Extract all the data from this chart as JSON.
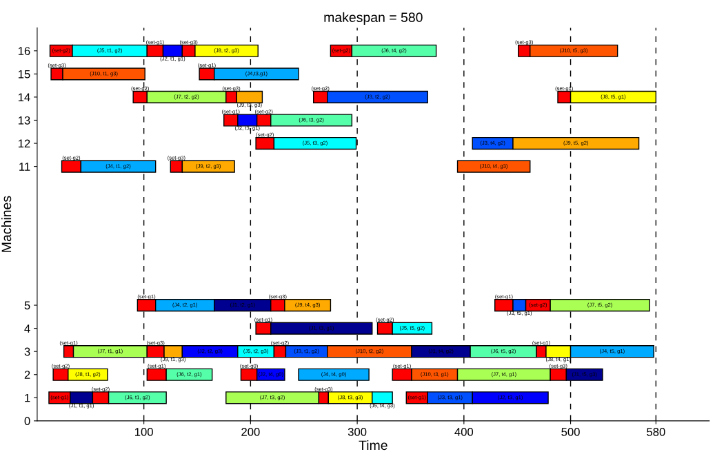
{
  "chart_data": {
    "type": "bar",
    "orientation": "horizontal",
    "title": "makespan = 580",
    "xlabel": "Time",
    "ylabel": "Machines",
    "categories": [
      "16",
      "15",
      "14",
      "13",
      "12",
      "11",
      null,
      null,
      null,
      null,
      null,
      "5",
      "4",
      "3",
      "2",
      "1",
      "0"
    ],
    "xlim": [
      0,
      630
    ],
    "xticks": [
      100,
      200,
      300,
      400,
      500,
      580
    ],
    "ref_lines": [
      {
        "axis": "x",
        "value": 100,
        "color": "#000000",
        "line_style": "dashed"
      },
      {
        "axis": "x",
        "value": 200,
        "color": "#000000",
        "line_style": "dashed"
      },
      {
        "axis": "x",
        "value": 300,
        "color": "#000000",
        "line_style": "dashed"
      },
      {
        "axis": "x",
        "value": 400,
        "color": "#000000",
        "line_style": "dashed"
      },
      {
        "axis": "x",
        "value": 500,
        "color": "#000000",
        "line_style": "dashed"
      },
      {
        "axis": "x",
        "value": 580,
        "color": "#000000",
        "line_style": "dashed"
      }
    ],
    "series": [
      {
        "base": [
          12,
          13,
          90,
          175,
          205,
          23,
          null,
          null,
          null,
          null,
          null,
          94,
          205,
          25,
          15,
          11,
          null
        ],
        "values": [
          21,
          11,
          13,
          13,
          17,
          18,
          null,
          null,
          null,
          null,
          null,
          17,
          14,
          9,
          14,
          20,
          null
        ],
        "colors": [
          "#ff0000",
          "#ff0000",
          "#ff0000",
          "#ff0000",
          "#ff0000",
          "#ff0000",
          null,
          null,
          null,
          null,
          null,
          "#ff0000",
          "#ff0000",
          "#ff0000",
          "#ff0000",
          "#ff0000",
          null
        ],
        "value_labels": [
          "(set-g2)",
          "(set-g3)",
          "(set-g2)",
          "(set-g1)",
          "(set-g2)",
          "(set-g2)",
          null,
          null,
          null,
          null,
          null,
          "(set-g1)",
          "(set-g1)",
          "(set-g1)",
          "(set-g2)",
          "(set-g1)",
          null
        ]
      },
      {
        "base": [
          33,
          24,
          103,
          188,
          222,
          41,
          null,
          null,
          null,
          null,
          null,
          111,
          219,
          34,
          29,
          31,
          null
        ],
        "values": [
          70,
          77,
          74,
          18,
          77,
          70,
          null,
          null,
          null,
          null,
          null,
          55,
          95,
          69,
          37,
          21,
          null
        ],
        "colors": [
          "#00ffff",
          "#ff5500",
          "#aaff55",
          "#0000ff",
          "#00ffff",
          "#00aaff",
          null,
          null,
          null,
          null,
          null,
          "#00aaff",
          "#000090",
          "#aaff55",
          "#ffff00",
          "#000090",
          null
        ],
        "value_labels": [
          "(J5, t1, g2)",
          "(J10, t1, g3)",
          "(J7, t2, g2)",
          "(J2, t3, g1)",
          "(J5, t3, g2)",
          "(J4, t1, g2)",
          null,
          null,
          null,
          null,
          null,
          "(J4, t2, g1)",
          "(J1, t3, g1)",
          "(J7, t1, g1)",
          "(J8, t1, g2)",
          "(J1, t1, g1)",
          null
        ]
      },
      {
        "base": [
          103,
          152,
          177,
          206,
          408,
          125,
          null,
          null,
          null,
          null,
          null,
          166,
          319,
          103,
          103,
          52,
          null
        ],
        "values": [
          15,
          14,
          10,
          13,
          38,
          11,
          null,
          null,
          null,
          null,
          null,
          53,
          14,
          16,
          18,
          15,
          null
        ],
        "colors": [
          "#ff0000",
          "#ff0000",
          "#ff0000",
          "#ff0000",
          "#0050ff",
          "#ff0000",
          null,
          null,
          null,
          null,
          null,
          "#000090",
          "#ff0000",
          "#ff0000",
          "#ff0000",
          "#ff0000",
          null
        ],
        "value_labels": [
          "(set-g1)",
          "(set-g1)",
          "(set-g3)",
          "(set-g2)",
          "(J3, t4, g2)",
          "(set-g3)",
          null,
          null,
          null,
          null,
          null,
          "(J1, t2, g1)",
          "(set-g2)",
          "(set-g3)",
          "(set-g1)",
          "(set-g2)",
          null
        ]
      },
      {
        "base": [
          118,
          166,
          187,
          219,
          446,
          136,
          null,
          null,
          null,
          null,
          null,
          219,
          333,
          119,
          121,
          67,
          null
        ],
        "values": [
          18,
          79,
          24,
          76,
          118,
          49,
          null,
          null,
          null,
          null,
          null,
          13,
          37,
          17,
          43,
          54,
          null
        ],
        "colors": [
          "#0000ff",
          "#00aaff",
          "#ffaa00",
          "#55ffaa",
          "#ffaa00",
          "#ffaa00",
          null,
          null,
          null,
          null,
          null,
          "#ff0000",
          "#00ffff",
          "#ffaa00",
          "#55ffaa",
          "#55ffaa",
          null
        ],
        "value_labels": [
          "(J2, t1, g1)",
          "(J4,t3,g1)",
          "(J9, t3, g3)",
          "(J6, t3, g2)",
          "(J9, t5, g2)",
          "(J9, t2, g3)",
          null,
          null,
          null,
          null,
          null,
          "(set-g3)",
          "(J5, t5, g2)",
          "(J9, t1, g3)",
          "(J6, t2, g1)",
          "(J6, t1, g2)",
          null
        ]
      },
      {
        "base": [
          136,
          null,
          259,
          null,
          null,
          394,
          null,
          null,
          null,
          null,
          null,
          232,
          null,
          136,
          191,
          177,
          null
        ],
        "values": [
          12,
          null,
          13,
          null,
          null,
          68,
          null,
          null,
          null,
          null,
          null,
          43,
          null,
          52,
          15,
          87,
          null
        ],
        "colors": [
          "#ff0000",
          null,
          "#ff0000",
          null,
          null,
          "#ff5500",
          null,
          null,
          null,
          null,
          null,
          "#ffaa00",
          null,
          "#0000ff",
          "#ff0000",
          "#aaff55",
          null
        ],
        "value_labels": [
          "(set-g3)",
          null,
          "(set-g2)",
          null,
          null,
          "(J10, t4, g3)",
          null,
          null,
          null,
          null,
          null,
          "(J9, t4, g3)",
          null,
          "(J2, t2, g3)",
          "(set-g0)",
          "(J7, t3, g2)",
          null
        ]
      },
      {
        "base": [
          148,
          null,
          272,
          null,
          null,
          null,
          null,
          null,
          null,
          null,
          null,
          429,
          null,
          188,
          206,
          264,
          null
        ],
        "values": [
          59,
          null,
          94,
          null,
          null,
          null,
          null,
          null,
          null,
          null,
          null,
          17,
          null,
          34,
          26,
          9,
          null
        ],
        "colors": [
          "#ffff00",
          null,
          "#0050ff",
          null,
          null,
          null,
          null,
          null,
          null,
          null,
          null,
          "#ff0000",
          null,
          "#00ffff",
          "#0000ff",
          "#ff0000",
          null
        ],
        "value_labels": [
          "(J8, t2, g3)",
          null,
          "(J3, t2, g2)",
          null,
          null,
          null,
          null,
          null,
          null,
          null,
          null,
          "(set-g1)",
          null,
          "(J5, t2, g3)",
          "(J2, t4, g0)",
          "(set-g3)",
          null
        ]
      },
      {
        "base": [
          275,
          null,
          488,
          null,
          null,
          null,
          null,
          null,
          null,
          null,
          null,
          446,
          null,
          222,
          245,
          273,
          null
        ],
        "values": [
          20,
          null,
          12,
          null,
          null,
          null,
          null,
          null,
          null,
          null,
          null,
          12,
          null,
          11,
          66,
          41,
          null
        ],
        "colors": [
          "#ff0000",
          null,
          "#ff0000",
          null,
          null,
          null,
          null,
          null,
          null,
          null,
          null,
          "#0050ff",
          null,
          "#ff0000",
          "#00aaff",
          "#ffff00",
          null
        ],
        "value_labels": [
          "(set-g2)",
          null,
          "(set-g1)",
          null,
          null,
          null,
          null,
          null,
          null,
          null,
          null,
          "(J3, t5, g1)",
          null,
          "(set-g2)",
          "(J4, t4, g0)",
          "(J8, t3, g3)",
          null
        ]
      },
      {
        "base": [
          295,
          null,
          500,
          null,
          null,
          null,
          null,
          null,
          null,
          null,
          null,
          458,
          null,
          233,
          333,
          314,
          null
        ],
        "values": [
          79,
          null,
          80,
          null,
          null,
          null,
          null,
          null,
          null,
          null,
          null,
          23,
          null,
          39,
          18,
          19,
          null
        ],
        "colors": [
          "#55ffaa",
          null,
          "#ffff00",
          null,
          null,
          null,
          null,
          null,
          null,
          null,
          null,
          "#ff0000",
          null,
          "#0050ff",
          "#ff0000",
          "#00ffff",
          null
        ],
        "value_labels": [
          "(J6, t4, g2)",
          null,
          "(J8, t5, g1)",
          null,
          null,
          null,
          null,
          null,
          null,
          null,
          null,
          "(set-g2)",
          null,
          "(J3, t1, g2)",
          "(set-g1)",
          "(J5, t4, g3)",
          null
        ]
      },
      {
        "base": [
          451,
          null,
          null,
          null,
          null,
          null,
          null,
          null,
          null,
          null,
          null,
          481,
          null,
          272,
          351,
          346,
          null
        ],
        "values": [
          11,
          null,
          null,
          null,
          null,
          null,
          null,
          null,
          null,
          null,
          null,
          93,
          null,
          79,
          43,
          20,
          null
        ],
        "colors": [
          "#ff0000",
          null,
          null,
          null,
          null,
          null,
          null,
          null,
          null,
          null,
          null,
          "#aaff55",
          null,
          "#ff5500",
          "#ff5500",
          "#ff0000",
          null
        ],
        "value_labels": [
          "(set-g3)",
          null,
          null,
          null,
          null,
          null,
          null,
          null,
          null,
          null,
          null,
          "(J7, t5, g2)",
          null,
          "(J10, t2, g2)",
          "(J10, t3, g1)",
          "(set-g1)",
          null
        ]
      },
      {
        "base": [
          462,
          null,
          null,
          null,
          null,
          null,
          null,
          null,
          null,
          null,
          null,
          null,
          null,
          351,
          394,
          366,
          null
        ],
        "values": [
          82,
          null,
          null,
          null,
          null,
          null,
          null,
          null,
          null,
          null,
          null,
          null,
          null,
          55,
          87,
          42,
          null
        ],
        "colors": [
          "#ff5500",
          null,
          null,
          null,
          null,
          null,
          null,
          null,
          null,
          null,
          null,
          null,
          null,
          "#000090",
          "#aaff55",
          "#0050ff",
          null
        ],
        "value_labels": [
          "(J10, t5, g3)",
          null,
          null,
          null,
          null,
          null,
          null,
          null,
          null,
          null,
          null,
          null,
          null,
          "(J1, t4, g2)",
          "(J7, t4, g1)",
          "(J3, t3, g1)",
          null
        ]
      },
      {
        "base": [
          null,
          null,
          null,
          null,
          null,
          null,
          null,
          null,
          null,
          null,
          null,
          null,
          null,
          406,
          481,
          408,
          null
        ],
        "values": [
          null,
          null,
          null,
          null,
          null,
          null,
          null,
          null,
          null,
          null,
          null,
          null,
          null,
          62,
          15,
          71,
          null
        ],
        "colors": [
          null,
          null,
          null,
          null,
          null,
          null,
          null,
          null,
          null,
          null,
          null,
          null,
          null,
          "#55ffaa",
          "#ff0000",
          "#0000ff",
          null
        ],
        "value_labels": [
          null,
          null,
          null,
          null,
          null,
          null,
          null,
          null,
          null,
          null,
          null,
          null,
          null,
          "(J6, t5, g2)",
          "(set-g3)",
          "(J2, t3, g1)",
          null
        ]
      },
      {
        "base": [
          null,
          null,
          null,
          null,
          null,
          null,
          null,
          null,
          null,
          null,
          null,
          null,
          null,
          468,
          496,
          null,
          null
        ],
        "values": [
          null,
          null,
          null,
          null,
          null,
          null,
          null,
          null,
          null,
          null,
          null,
          null,
          null,
          9,
          34,
          null,
          null
        ],
        "colors": [
          null,
          null,
          null,
          null,
          null,
          null,
          null,
          null,
          null,
          null,
          null,
          null,
          null,
          "#ff0000",
          "#000090",
          null,
          null
        ],
        "value_labels": [
          null,
          null,
          null,
          null,
          null,
          null,
          null,
          null,
          null,
          null,
          null,
          null,
          null,
          "(set-g1)",
          "(J1, t5, g3)",
          null,
          null
        ]
      },
      {
        "base": [
          null,
          null,
          null,
          null,
          null,
          null,
          null,
          null,
          null,
          null,
          null,
          null,
          null,
          477,
          null,
          null,
          null
        ],
        "values": [
          null,
          null,
          null,
          null,
          null,
          null,
          null,
          null,
          null,
          null,
          null,
          null,
          null,
          23,
          null,
          null,
          null
        ],
        "colors": [
          null,
          null,
          null,
          null,
          null,
          null,
          null,
          null,
          null,
          null,
          null,
          null,
          null,
          "#ffff00",
          null,
          null,
          null
        ],
        "value_labels": [
          null,
          null,
          null,
          null,
          null,
          null,
          null,
          null,
          null,
          null,
          null,
          null,
          null,
          "(J8, t4, g1)",
          null,
          null,
          null
        ]
      },
      {
        "base": [
          null,
          null,
          null,
          null,
          null,
          null,
          null,
          null,
          null,
          null,
          null,
          null,
          null,
          500,
          null,
          null,
          null
        ],
        "values": [
          null,
          null,
          null,
          null,
          null,
          null,
          null,
          null,
          null,
          null,
          null,
          null,
          null,
          78,
          null,
          null,
          null
        ],
        "colors": [
          null,
          null,
          null,
          null,
          null,
          null,
          null,
          null,
          null,
          null,
          null,
          null,
          null,
          "#00aaff",
          null,
          null,
          null
        ],
        "value_labels": [
          null,
          null,
          null,
          null,
          null,
          null,
          null,
          null,
          null,
          null,
          null,
          null,
          null,
          "(J4, t5, g1)",
          null,
          null,
          null
        ]
      }
    ]
  }
}
